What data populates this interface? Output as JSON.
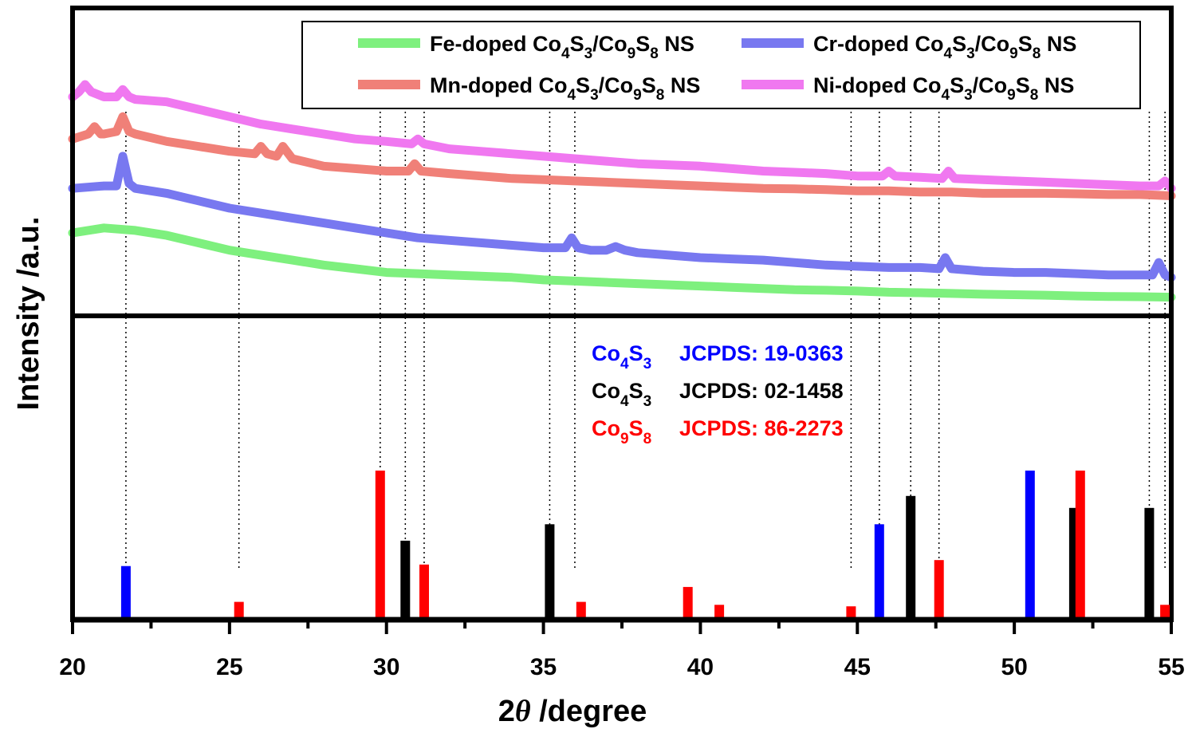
{
  "chart_data": {
    "type": "line",
    "xlabel_prefix": "2",
    "xlabel_theta": "θ",
    "xlabel_suffix": " /degree",
    "ylabel": "Intensity /a.u.",
    "xlim": [
      20,
      55
    ],
    "xticks": [
      "20",
      "25",
      "30",
      "35",
      "40",
      "45",
      "50",
      "55"
    ],
    "upper_panel": {
      "y_range": [
        0,
        100
      ],
      "series": [
        {
          "name": "Fe-doped Co4S3/Co9S8 NS",
          "color": "#7ef07e",
          "x": [
            20,
            21,
            22,
            23,
            24,
            25,
            26,
            27,
            28,
            29,
            30,
            31,
            32,
            33,
            34,
            35,
            36,
            37,
            38,
            39,
            40,
            41,
            42,
            43,
            44,
            45,
            46,
            47,
            48,
            49,
            50,
            51,
            52,
            53,
            54,
            55
          ],
          "y": [
            30,
            32,
            31,
            29,
            26,
            23,
            21,
            19,
            17,
            15.5,
            14,
            13.5,
            13,
            12.5,
            12,
            11,
            10.5,
            10,
            9.5,
            9,
            8.5,
            8,
            7.5,
            7,
            6.8,
            6.5,
            6,
            5.8,
            5.5,
            5.2,
            5,
            4.8,
            4.5,
            4.3,
            4.2,
            4
          ]
        },
        {
          "name": "Cr-doped Co4S3/Co9S8 NS",
          "color": "#7878f0",
          "x": [
            20,
            21,
            21.4,
            21.6,
            21.8,
            22,
            23,
            24,
            25,
            26,
            27,
            28,
            29,
            30,
            31,
            32,
            33,
            34,
            35,
            35.7,
            35.9,
            36.1,
            36.5,
            37,
            37.3,
            37.6,
            38,
            39,
            40,
            41,
            42,
            43,
            44,
            45,
            46,
            47,
            47.6,
            47.8,
            48,
            48.5,
            49,
            50,
            51,
            52,
            53,
            54,
            54.4,
            54.6,
            54.8,
            55
          ],
          "y": [
            48,
            49,
            49,
            61,
            50,
            48,
            46,
            43,
            40,
            38,
            36,
            34,
            32,
            30,
            28,
            27,
            26,
            25,
            24,
            24,
            28,
            24,
            23,
            23,
            24.5,
            23,
            22,
            21,
            20,
            19.5,
            19,
            18,
            17,
            16.5,
            16,
            16,
            15.5,
            20,
            15.5,
            15,
            14.5,
            14,
            14,
            13.5,
            13,
            13,
            13,
            18,
            13,
            12
          ]
        },
        {
          "name": "Mn-doped Co4S3/Co9S8 NS",
          "color": "#f08078",
          "x": [
            20,
            20.5,
            20.7,
            20.9,
            21,
            21.4,
            21.6,
            21.8,
            22,
            23,
            24,
            25,
            25.8,
            26,
            26.2,
            26.5,
            26.7,
            27,
            28,
            29,
            30,
            30.7,
            30.9,
            31.1,
            32,
            33,
            34,
            35,
            36,
            37,
            38,
            39,
            40,
            41,
            42,
            43,
            44,
            45,
            46,
            47,
            48,
            49,
            50,
            51,
            52,
            53,
            54,
            55
          ],
          "y": [
            68,
            70,
            73,
            70,
            70,
            71,
            77,
            71,
            70,
            67,
            65,
            63,
            62,
            65,
            62,
            61,
            65,
            60,
            57,
            56,
            55,
            55,
            58,
            55,
            54,
            53,
            52,
            51.5,
            51,
            50.5,
            50,
            49.5,
            49,
            48.5,
            48,
            47.8,
            47.5,
            47,
            47,
            46.5,
            46.5,
            46,
            46,
            46,
            45.8,
            45.5,
            45.5,
            45
          ]
        },
        {
          "name": "Ni-doped Co4S3/Co9S8 NS",
          "color": "#f078f0",
          "x": [
            20,
            20.2,
            20.4,
            20.6,
            21,
            21.4,
            21.6,
            21.8,
            22,
            23,
            24,
            25,
            26,
            27,
            28,
            29,
            30,
            30.8,
            31,
            31.2,
            32,
            33,
            34,
            35,
            36,
            37,
            38,
            39,
            40,
            41,
            42,
            43,
            44,
            45,
            45.8,
            46,
            46.2,
            47,
            47.7,
            47.9,
            48.1,
            49,
            50,
            51,
            52,
            53,
            54,
            54.6,
            54.8,
            55
          ],
          "y": [
            85,
            87,
            90,
            87,
            85,
            85,
            88,
            85,
            84,
            83,
            80,
            77,
            74,
            72,
            70,
            68,
            67,
            66,
            68,
            66,
            64,
            63,
            62,
            61,
            60,
            59,
            58,
            57.5,
            57,
            56,
            55,
            54.5,
            54,
            53,
            53,
            55,
            53,
            52.5,
            52,
            55,
            52,
            51.5,
            51,
            50.5,
            50,
            49.5,
            49,
            49,
            51,
            48
          ]
        }
      ]
    },
    "reference_panel": {
      "y_range": [
        0,
        100
      ],
      "patterns": [
        {
          "label_main": "Co",
          "sub1": "4",
          "label_mid": "S",
          "sub2": "3",
          "jcpds": "JCPDS: 19-0363",
          "color": "#0000ff",
          "peaks": [
            [
              21.7,
              36
            ],
            [
              45.7,
              64
            ],
            [
              50.5,
              100
            ]
          ]
        },
        {
          "label_main": "Co",
          "sub1": "4",
          "label_mid": "S",
          "sub2": "3",
          "jcpds": "JCPDS: 02-1458",
          "color": "#000000",
          "peaks": [
            [
              30.6,
              53
            ],
            [
              35.2,
              64
            ],
            [
              46.7,
              83
            ],
            [
              51.9,
              75
            ],
            [
              54.3,
              75
            ]
          ]
        },
        {
          "label_main": "Co",
          "sub1": "9",
          "label_mid": "S",
          "sub2": "8",
          "jcpds": "JCPDS: 86-2273",
          "color": "#ff0000",
          "peaks": [
            [
              25.3,
              12
            ],
            [
              29.8,
              100
            ],
            [
              31.2,
              37
            ],
            [
              36.2,
              12
            ],
            [
              39.6,
              22
            ],
            [
              40.6,
              10
            ],
            [
              44.8,
              9
            ],
            [
              47.6,
              40
            ],
            [
              52.1,
              100
            ],
            [
              54.8,
              10
            ]
          ]
        }
      ]
    },
    "guide_lines_x": [
      21.7,
      25.3,
      29.8,
      30.6,
      31.2,
      35.2,
      36.0,
      44.8,
      45.7,
      46.7,
      47.6,
      54.3,
      54.8
    ]
  },
  "legend": {
    "items": [
      {
        "prefix": "Fe-doped Co",
        "s1": "4",
        "mid": "S",
        "s2": "3",
        "mid2": "/Co",
        "s3": "9",
        "mid3": "S",
        "s4": "8",
        "suffix": " NS",
        "color": "#7ef07e"
      },
      {
        "prefix": "Cr-doped Co",
        "s1": "4",
        "mid": "S",
        "s2": "3",
        "mid2": "/Co",
        "s3": "9",
        "mid3": "S",
        "s4": "8",
        "suffix": " NS",
        "color": "#7878f0"
      },
      {
        "prefix": "Mn-doped Co",
        "s1": "4",
        "mid": "S",
        "s2": "3",
        "mid2": "/Co",
        "s3": "9",
        "mid3": "S",
        "s4": "8",
        "suffix": " NS",
        "color": "#f08078"
      },
      {
        "prefix": "Ni-doped Co",
        "s1": "4",
        "mid": "S",
        "s2": "3",
        "mid2": "/Co",
        "s3": "9",
        "mid3": "S",
        "s4": "8",
        "suffix": " NS",
        "color": "#f078f0"
      }
    ]
  }
}
